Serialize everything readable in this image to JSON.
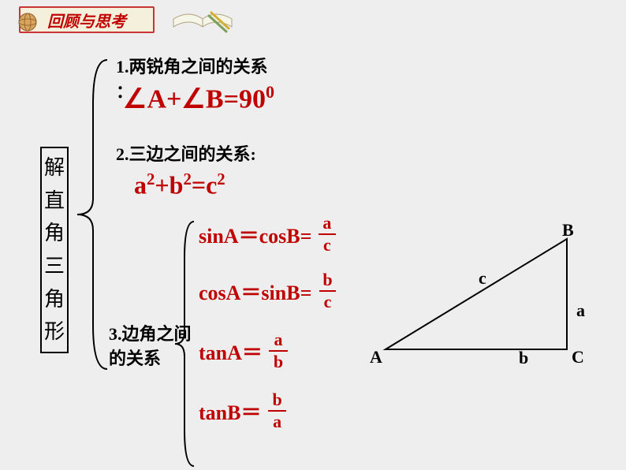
{
  "header": "回顾与思考",
  "vertical_label": "解直角三角形",
  "item1": {
    "label": "1.两锐角之间的关系",
    "colon": "：",
    "formula_html": "∠A+∠B=90<sup>0</sup>"
  },
  "item2": {
    "label": "2.三边之间的关系:",
    "formula_html": "a<sup>2</sup>+b<sup>2</sup>=c<sup>2</sup>"
  },
  "item3": {
    "label": "3.边角之间的关系"
  },
  "trig": {
    "sinA": {
      "lhs": "sinA＝cosB=",
      "num": "a",
      "den": "c"
    },
    "cosA": {
      "lhs": "cosA＝sinB=",
      "num": "b",
      "den": "c"
    },
    "tanA": {
      "lhs": "tanA＝",
      "num": "a",
      "den": "b"
    },
    "tanB": {
      "lhs": "tanB＝",
      "num": "b",
      "den": "a"
    }
  },
  "triangle": {
    "A": "A",
    "B": "B",
    "C": "C",
    "a": "a",
    "b": "b",
    "c": "c",
    "stroke": "#000000",
    "text_color": "#000000"
  },
  "colors": {
    "accent": "#c00000",
    "bg": "#eeeeee",
    "brace": "#000000"
  }
}
